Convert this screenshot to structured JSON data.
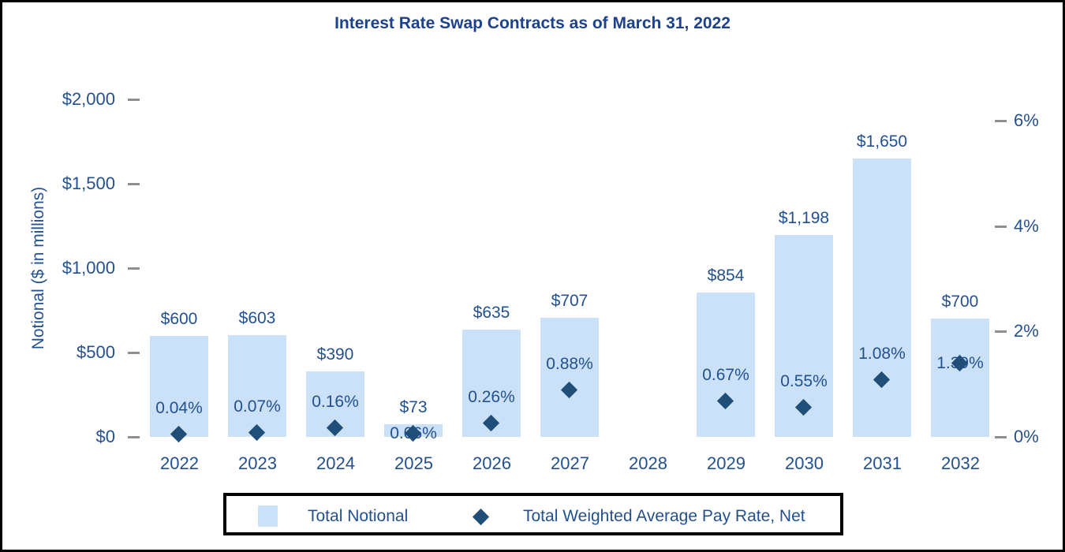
{
  "chart_data": {
    "type": "bar",
    "title": "Interest Rate Swap Contracts as of March 31, 2022",
    "categories": [
      "2022",
      "2023",
      "2024",
      "2025",
      "2026",
      "2027",
      "2028",
      "2029",
      "2030",
      "2031",
      "2032"
    ],
    "series": [
      {
        "name": "Total Notional",
        "type": "bar",
        "axis": "left",
        "values": [
          600,
          603,
          390,
          73,
          635,
          707,
          null,
          854,
          1198,
          1650,
          700
        ],
        "labels": [
          "$600",
          "$603",
          "$390",
          "$73",
          "$635",
          "$707",
          null,
          "$854",
          "$1,198",
          "$1,650",
          "$700"
        ]
      },
      {
        "name": "Total Weighted Average Pay Rate, Net",
        "type": "scatter",
        "marker": "diamond",
        "axis": "right",
        "values": [
          0.04,
          0.07,
          0.16,
          0.06,
          0.26,
          0.88,
          null,
          0.67,
          0.55,
          1.08,
          1.39
        ],
        "labels": [
          "0.04%",
          "0.07%",
          "0.16%",
          "0.06%",
          "0.26%",
          "0.88%",
          null,
          "0.67%",
          "0.55%",
          "1.08%",
          "1.39%"
        ],
        "label_overlaps_marker": [
          false,
          false,
          false,
          true,
          false,
          false,
          false,
          false,
          false,
          false,
          true
        ]
      }
    ],
    "left_axis": {
      "label": "Notional ($ in millions)",
      "min": 0,
      "max": 2000,
      "ticks": [
        {
          "label": "$0",
          "value": 0
        },
        {
          "label": "$500",
          "value": 500
        },
        {
          "label": "$1,000",
          "value": 1000
        },
        {
          "label": "$1,500",
          "value": 1500
        },
        {
          "label": "$2,000",
          "value": 2000
        }
      ]
    },
    "right_axis": {
      "min": 0,
      "max": 6,
      "ticks": [
        {
          "label": "0%",
          "value": 0
        },
        {
          "label": "2%",
          "value": 2
        },
        {
          "label": "4%",
          "value": 4
        },
        {
          "label": "6%",
          "value": 6
        }
      ]
    },
    "grid": false,
    "xlabel": "",
    "legend": {
      "position": "bottom",
      "entries": [
        {
          "swatch": "square",
          "label": "Total Notional"
        },
        {
          "swatch": "diamond",
          "label": "Total Weighted Average Pay Rate, Net"
        }
      ]
    },
    "colors": {
      "bar_fill": "#cbe1f8",
      "marker": "#1f4e79",
      "text": "#23518f",
      "title": "#1d428c",
      "tick_dash": "#8f8f8f",
      "border": "#000000"
    }
  }
}
